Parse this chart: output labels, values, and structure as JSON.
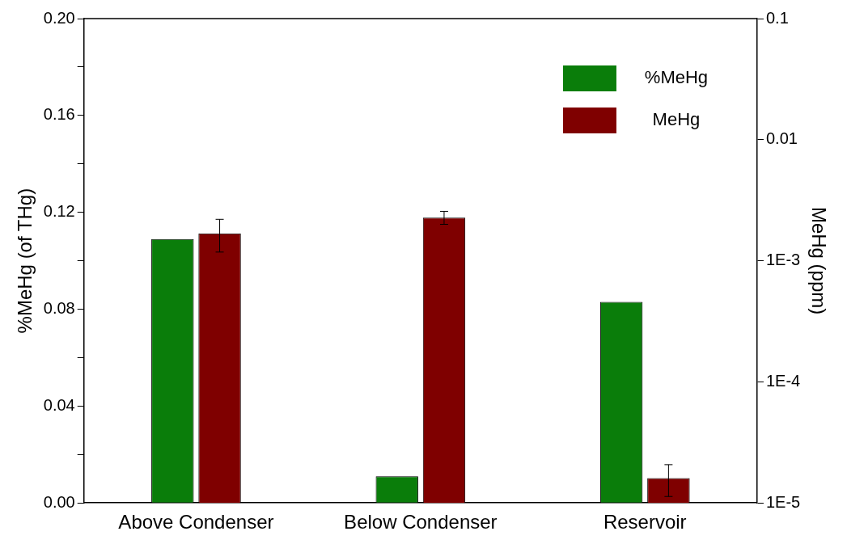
{
  "chart_data": {
    "type": "bar",
    "categories": [
      "Above Condenser",
      "Below Condenser",
      "Reservoir"
    ],
    "ylabel": "%MeHg (of THg)",
    "y2label": "MeHg (ppm)",
    "series": [
      {
        "name": "%MeHg",
        "color": "#0a7d0a",
        "values": [
          0.109,
          0.011,
          0.083
        ]
      },
      {
        "name": "MeHg",
        "color": "#7f0000",
        "axis": "y2",
        "values": [
          0.00168,
          0.00227,
          1.6e-05
        ],
        "errors": [
          [
            0.00118,
            0.0022
          ],
          [
            0.002,
            0.00256
          ],
          [
            1.13e-05,
            2.07e-05
          ]
        ]
      }
    ],
    "ylim": [
      0,
      0.2
    ],
    "yticks": [
      {
        "value": 0,
        "label": "0.00"
      },
      {
        "value": 0.02,
        "label": null
      },
      {
        "value": 0.04,
        "label": "0.04"
      },
      {
        "value": 0.06,
        "label": null
      },
      {
        "value": 0.08,
        "label": "0.08"
      },
      {
        "value": 0.1,
        "label": null
      },
      {
        "value": 0.12,
        "label": "0.12"
      },
      {
        "value": 0.14,
        "label": null
      },
      {
        "value": 0.16,
        "label": "0.16"
      },
      {
        "value": 0.18,
        "label": null
      },
      {
        "value": 0.2,
        "label": "0.20"
      }
    ],
    "y2lim": [
      1e-05,
      0.1
    ],
    "y2ticks": [
      {
        "value": 1e-05,
        "label": "1E-5"
      },
      {
        "value": 0.0001,
        "label": "1E-4"
      },
      {
        "value": 0.001,
        "label": "1E-3"
      },
      0.01,
      0.1
    ],
    "log": "y2",
    "grid": false,
    "legend": "top right"
  }
}
